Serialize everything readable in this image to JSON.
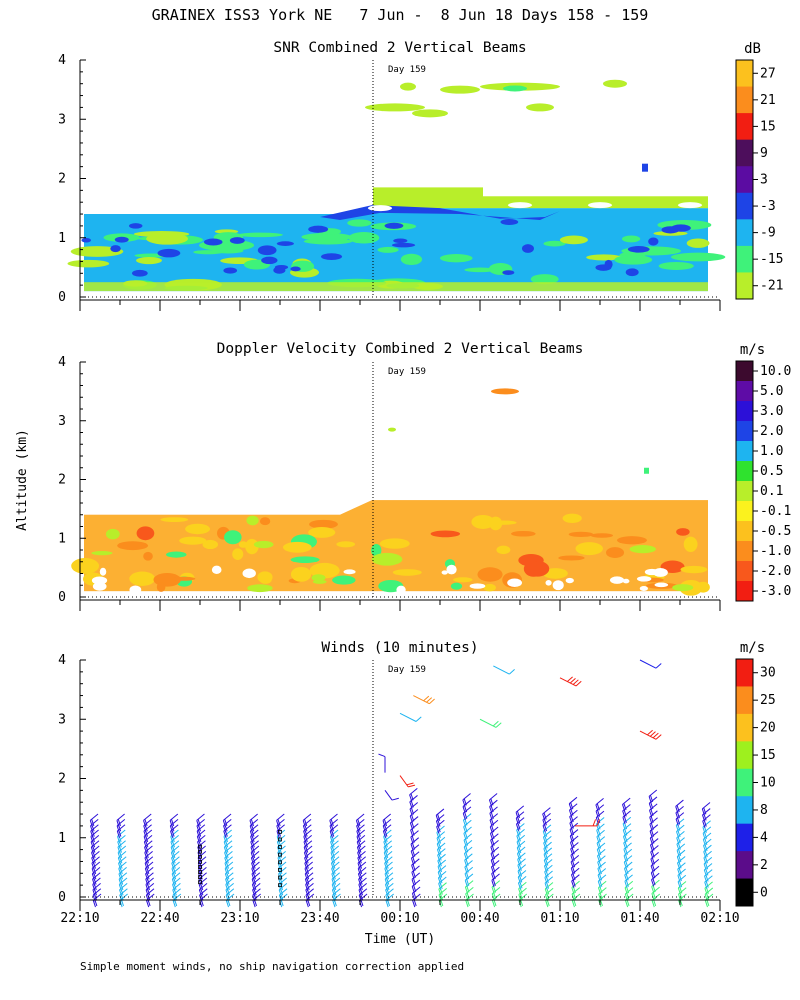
{
  "figure_title": "GRAINEX ISS3 York NE   7 Jun -  8 Jun 18 Days 158 - 159",
  "y_axis_label": "Altitude (km)",
  "x_axis_label": "Time (UT)",
  "day_label": "Day 159",
  "footnote": "Simple moment winds, no ship navigation correction applied",
  "time_ticks": [
    "22:10",
    "22:40",
    "23:10",
    "23:40",
    "00:10",
    "00:40",
    "01:10",
    "01:40",
    "02:10"
  ],
  "altitude_ticks": [
    "0",
    "1",
    "2",
    "3",
    "4"
  ],
  "palette": {
    "lime": "#b8ee2a",
    "green": "#3ff27a",
    "cyan": "#1eb4f0",
    "blue": "#1e44e6",
    "indigo": "#5b0ca2",
    "purple": "#4d0e5c",
    "red": "#f21e12",
    "orange": "#fb8d1d",
    "yellow": "#fbd21e"
  },
  "chart_data": [
    {
      "type": "heatmap",
      "title": "SNR Combined 2 Vertical Beams",
      "xlabel": "Time (UT)",
      "ylabel": "Altitude (km)",
      "x_ticks": [
        "22:10",
        "22:40",
        "23:10",
        "23:40",
        "00:10",
        "00:40",
        "01:10",
        "01:40",
        "02:10"
      ],
      "ylim": [
        0,
        4
      ],
      "colorbar_unit": "dB",
      "colorbar_labels": [
        "27",
        "21",
        "15",
        "9",
        "3",
        "-3",
        "-9",
        "-15",
        "-21"
      ],
      "colorbar_colors": [
        "#fcc11e",
        "#fb8d1d",
        "#f21e12",
        "#4d0e5c",
        "#5b0ca2",
        "#1e44e6",
        "#1eb4f0",
        "#3ff27a",
        "#b8ee2a"
      ],
      "coverage_top_km": {
        "before_day_boundary": 1.4,
        "after_day_boundary": 1.7
      },
      "dominant_snr_dB": {
        "below_1_4_km": "-9",
        "near_1_4_km_layer": "-3",
        "above_1_5_km": "-21"
      }
    },
    {
      "type": "heatmap",
      "title": "Doppler Velocity Combined 2 Vertical Beams",
      "xlabel": "Time (UT)",
      "ylabel": "Altitude (km)",
      "x_ticks": [
        "22:10",
        "22:40",
        "23:10",
        "23:40",
        "00:10",
        "00:40",
        "01:10",
        "01:40",
        "02:10"
      ],
      "ylim": [
        0,
        4
      ],
      "colorbar_unit": "m/s",
      "colorbar_labels": [
        "10.0",
        "5.0",
        "3.0",
        "2.0",
        "1.0",
        "0.5",
        "0.1",
        "-0.1",
        "-0.5",
        "-1.0",
        "-2.0",
        "-3.0"
      ],
      "colorbar_colors": [
        "#3c0a2e",
        "#5e0ca6",
        "#2c10d8",
        "#1e44e6",
        "#1eb4f0",
        "#2fe22e",
        "#b8ee2a",
        "#fbf21e",
        "#fcc11e",
        "#fb8d1d",
        "#f8581c",
        "#f21e12"
      ],
      "dominant_velocity_ms": "-0.5"
    },
    {
      "type": "scatter",
      "title": "Winds (10 minutes)",
      "xlabel": "Time (UT)",
      "ylabel": "Altitude (km)",
      "x_ticks": [
        "22:10",
        "22:40",
        "23:10",
        "23:40",
        "00:10",
        "00:40",
        "01:10",
        "01:40",
        "02:10"
      ],
      "ylim": [
        0,
        4
      ],
      "colorbar_unit": "m/s",
      "colorbar_labels": [
        "30",
        "25",
        "20",
        "15",
        "10",
        "8",
        "4",
        "2",
        "0"
      ],
      "colorbar_colors": [
        "#f21e12",
        "#fb8d1d",
        "#fcc11e",
        "#9ef01e",
        "#3ff27a",
        "#1eb4f0",
        "#1e20e8",
        "#5b0c8a",
        "#000000"
      ],
      "profile_count": 24,
      "profile_top_km": 1.4,
      "typical_speed_ms": [
        4,
        10
      ],
      "upper_level_barbs": [
        {
          "time": "00:10",
          "alt_km": 3.1,
          "speed_ms": 8
        },
        {
          "time": "00:15",
          "alt_km": 3.4,
          "speed_ms": 22
        },
        {
          "time": "00:40",
          "alt_km": 3.0,
          "speed_ms": 13
        },
        {
          "time": "00:45",
          "alt_km": 3.9,
          "speed_ms": 9
        },
        {
          "time": "01:10",
          "alt_km": 3.7,
          "speed_ms": 30
        },
        {
          "time": "01:40",
          "alt_km": 2.8,
          "speed_ms": 30
        },
        {
          "time": "01:40",
          "alt_km": 4.0,
          "speed_ms": 5
        }
      ]
    }
  ]
}
